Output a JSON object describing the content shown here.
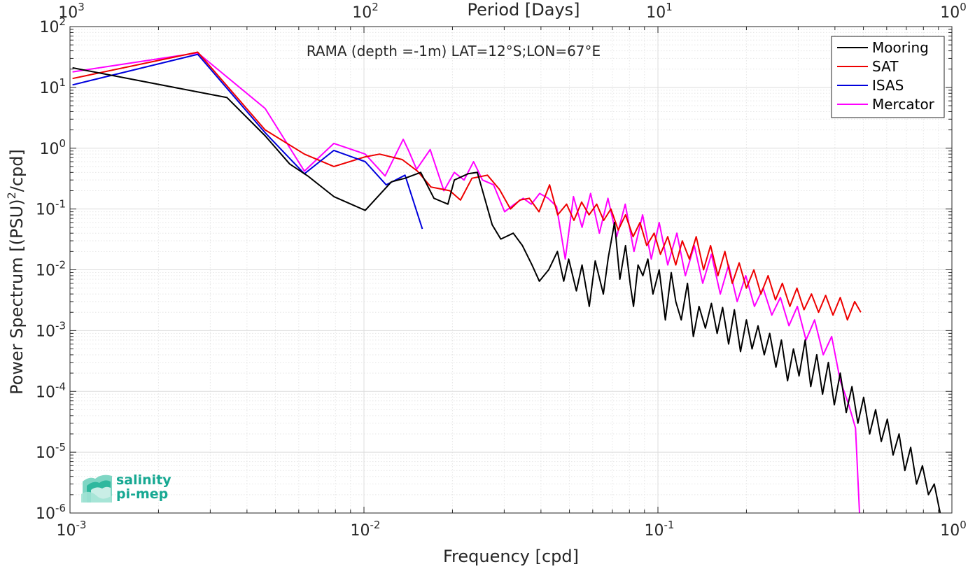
{
  "chart_data": {
    "type": "line",
    "x_scale": "log",
    "y_scale": "log",
    "xlim": [
      0.001,
      1
    ],
    "ylim": [
      1e-06,
      100
    ],
    "top_xlim_days": [
      1000,
      1
    ],
    "xlabel": "Frequency [cpd]",
    "ylabel": "Power Spectrum [(PSU)²/cpd]",
    "ylabel_parts": {
      "before": "Power Spectrum [(PSU)",
      "sup": "2",
      "after": "/cpd]"
    },
    "top_xlabel": "Period [Days]",
    "annotation": "RAMA (depth =-1m) LAT=12°S;LON=67°E",
    "grid": true,
    "minor_grid": true,
    "legend_position": "top-right",
    "x_ticks": [
      {
        "value": 0.001,
        "base": "10",
        "exp": "-3"
      },
      {
        "value": 0.01,
        "base": "10",
        "exp": "-2"
      },
      {
        "value": 0.1,
        "base": "10",
        "exp": "-1"
      },
      {
        "value": 1,
        "base": "10",
        "exp": "0"
      }
    ],
    "top_ticks": [
      {
        "value": 0.001,
        "base": "10",
        "exp": "3"
      },
      {
        "value": 0.01,
        "base": "10",
        "exp": "2"
      },
      {
        "value": 0.1,
        "base": "10",
        "exp": "1"
      },
      {
        "value": 1,
        "base": "10",
        "exp": "0"
      }
    ],
    "y_ticks": [
      {
        "value": 1e-06,
        "base": "10",
        "exp": "-6"
      },
      {
        "value": 1e-05,
        "base": "10",
        "exp": "-5"
      },
      {
        "value": 0.0001,
        "base": "10",
        "exp": "-4"
      },
      {
        "value": 0.001,
        "base": "10",
        "exp": "-3"
      },
      {
        "value": 0.01,
        "base": "10",
        "exp": "-2"
      },
      {
        "value": 0.1,
        "base": "10",
        "exp": "-1"
      },
      {
        "value": 1,
        "base": "10",
        "exp": "0"
      },
      {
        "value": 10,
        "base": "10",
        "exp": "1"
      },
      {
        "value": 100,
        "base": "10",
        "exp": "2"
      }
    ],
    "series": [
      {
        "name": "Mooring",
        "color": "#000000",
        "x": [
          0.00102,
          0.00342,
          0.00461,
          0.00559,
          0.00644,
          0.0079,
          0.0101,
          0.0124,
          0.0138,
          0.0156,
          0.0173,
          0.0193,
          0.0203,
          0.0226,
          0.0243,
          0.0273,
          0.0292,
          0.0322,
          0.0346,
          0.0373,
          0.0395,
          0.0425,
          0.0455,
          0.0478,
          0.0497,
          0.0528,
          0.0552,
          0.0584,
          0.0612,
          0.0652,
          0.0678,
          0.0712,
          0.0742,
          0.0776,
          0.0806,
          0.0826,
          0.0856,
          0.0889,
          0.0924,
          0.0962,
          0.101,
          0.106,
          0.111,
          0.115,
          0.12,
          0.126,
          0.132,
          0.138,
          0.145,
          0.152,
          0.159,
          0.166,
          0.174,
          0.182,
          0.191,
          0.2,
          0.209,
          0.219,
          0.23,
          0.24,
          0.252,
          0.263,
          0.276,
          0.289,
          0.302,
          0.317,
          0.331,
          0.347,
          0.363,
          0.38,
          0.398,
          0.417,
          0.437,
          0.457,
          0.479,
          0.501,
          0.525,
          0.55,
          0.575,
          0.603,
          0.631,
          0.661,
          0.692,
          0.724,
          0.758,
          0.794,
          0.832,
          0.871,
          0.912
        ],
        "values": [
          21,
          6.8,
          1.6,
          0.55,
          0.35,
          0.16,
          0.095,
          0.28,
          0.32,
          0.4,
          0.15,
          0.12,
          0.3,
          0.38,
          0.4,
          0.055,
          0.032,
          0.04,
          0.025,
          0.012,
          0.0065,
          0.01,
          0.02,
          0.0065,
          0.015,
          0.0045,
          0.012,
          0.0025,
          0.014,
          0.004,
          0.016,
          0.06,
          0.007,
          0.025,
          0.0055,
          0.0025,
          0.012,
          0.008,
          0.015,
          0.004,
          0.01,
          0.0015,
          0.009,
          0.003,
          0.0015,
          0.006,
          0.0008,
          0.0025,
          0.0011,
          0.0028,
          0.0009,
          0.0024,
          0.0006,
          0.0022,
          0.00045,
          0.0015,
          0.0005,
          0.0012,
          0.0004,
          0.0009,
          0.00025,
          0.0007,
          0.00015,
          0.0005,
          0.00018,
          0.0007,
          0.00012,
          0.0004,
          9e-05,
          0.0003,
          6e-05,
          0.0002,
          4.5e-05,
          0.00012,
          3e-05,
          8e-05,
          2e-05,
          5e-05,
          1.5e-05,
          3.5e-05,
          9e-06,
          2e-05,
          5e-06,
          1.2e-05,
          3e-06,
          6e-06,
          2e-06,
          3e-06,
          1e-06
        ]
      },
      {
        "name": "SAT",
        "color": "#ee0000",
        "x": [
          0.00102,
          0.00272,
          0.00461,
          0.00627,
          0.0079,
          0.0101,
          0.0113,
          0.0135,
          0.0152,
          0.0169,
          0.0196,
          0.0213,
          0.0233,
          0.0263,
          0.0289,
          0.0315,
          0.0339,
          0.0365,
          0.0394,
          0.0428,
          0.0456,
          0.0489,
          0.0518,
          0.055,
          0.0583,
          0.0619,
          0.0654,
          0.0692,
          0.0733,
          0.0776,
          0.0823,
          0.0869,
          0.0916,
          0.0971,
          0.102,
          0.108,
          0.115,
          0.121,
          0.128,
          0.135,
          0.143,
          0.151,
          0.16,
          0.169,
          0.179,
          0.189,
          0.2,
          0.212,
          0.224,
          0.237,
          0.251,
          0.265,
          0.281,
          0.297,
          0.314,
          0.333,
          0.352,
          0.372,
          0.394,
          0.417,
          0.441,
          0.467,
          0.49
        ],
        "values": [
          14,
          38,
          2.0,
          0.8,
          0.5,
          0.72,
          0.8,
          0.65,
          0.42,
          0.23,
          0.2,
          0.14,
          0.32,
          0.36,
          0.21,
          0.1,
          0.14,
          0.15,
          0.09,
          0.25,
          0.08,
          0.12,
          0.065,
          0.13,
          0.08,
          0.12,
          0.065,
          0.1,
          0.045,
          0.08,
          0.035,
          0.06,
          0.025,
          0.04,
          0.018,
          0.035,
          0.012,
          0.03,
          0.015,
          0.035,
          0.01,
          0.025,
          0.008,
          0.02,
          0.006,
          0.013,
          0.005,
          0.01,
          0.004,
          0.008,
          0.0032,
          0.006,
          0.0025,
          0.005,
          0.0022,
          0.004,
          0.002,
          0.0038,
          0.0018,
          0.0035,
          0.0015,
          0.003,
          0.002
        ]
      },
      {
        "name": "ISAS",
        "color": "#0000dd",
        "x": [
          0.00102,
          0.00272,
          0.00461,
          0.00627,
          0.0079,
          0.0101,
          0.0119,
          0.0138,
          0.0158
        ],
        "values": [
          11,
          35,
          1.8,
          0.38,
          0.92,
          0.6,
          0.25,
          0.36,
          0.047
        ]
      },
      {
        "name": "Mercator",
        "color": "#ff00ff",
        "x": [
          0.00102,
          0.00272,
          0.00461,
          0.00627,
          0.0079,
          0.0101,
          0.0118,
          0.0136,
          0.0142,
          0.0151,
          0.0168,
          0.0187,
          0.0203,
          0.0219,
          0.0236,
          0.0253,
          0.0276,
          0.0301,
          0.0325,
          0.0348,
          0.0371,
          0.0396,
          0.0423,
          0.0452,
          0.0484,
          0.0516,
          0.0552,
          0.059,
          0.0632,
          0.0676,
          0.0724,
          0.0774,
          0.0829,
          0.0887,
          0.0949,
          0.101,
          0.108,
          0.116,
          0.124,
          0.133,
          0.142,
          0.152,
          0.163,
          0.174,
          0.186,
          0.199,
          0.213,
          0.228,
          0.244,
          0.261,
          0.279,
          0.298,
          0.319,
          0.341,
          0.365,
          0.39,
          0.417,
          0.446,
          0.47,
          0.485
        ],
        "values": [
          18,
          37,
          4.5,
          0.42,
          1.2,
          0.8,
          0.35,
          1.4,
          0.9,
          0.45,
          0.95,
          0.2,
          0.4,
          0.3,
          0.6,
          0.3,
          0.25,
          0.09,
          0.12,
          0.15,
          0.12,
          0.18,
          0.15,
          0.11,
          0.015,
          0.16,
          0.05,
          0.18,
          0.04,
          0.15,
          0.035,
          0.12,
          0.02,
          0.08,
          0.015,
          0.06,
          0.012,
          0.04,
          0.008,
          0.025,
          0.006,
          0.018,
          0.004,
          0.012,
          0.003,
          0.008,
          0.0025,
          0.005,
          0.0018,
          0.0035,
          0.0012,
          0.0025,
          0.0007,
          0.0015,
          0.0004,
          0.0008,
          0.00015,
          6e-05,
          2.5e-05,
          1e-06
        ]
      }
    ]
  },
  "logo": {
    "line1": "salinity",
    "line2": "pi-mep",
    "color": "#16a892"
  }
}
